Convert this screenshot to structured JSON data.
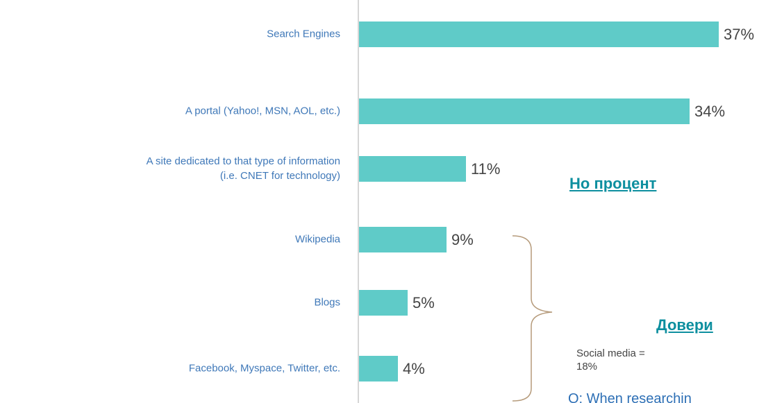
{
  "chart_data": {
    "type": "bar",
    "orientation": "horizontal",
    "categories": [
      "Search Engines",
      "A portal (Yahoo!, MSN, AOL, etc.)",
      "A site dedicated to that type of information\n(i.e. CNET for technology)",
      "Wikipedia",
      "Blogs",
      "Facebook, Myspace, Twitter, etc."
    ],
    "values": [
      37,
      34,
      11,
      9,
      5,
      4
    ],
    "value_labels": [
      "37%",
      "34%",
      "11%",
      "9%",
      "5%",
      "4%"
    ],
    "color": "#5fcbc8",
    "xlim": [
      0,
      40
    ],
    "annotations": [
      "Social media =\n18%",
      "Но процент",
      "Довери",
      "Q: When researchin"
    ]
  }
}
